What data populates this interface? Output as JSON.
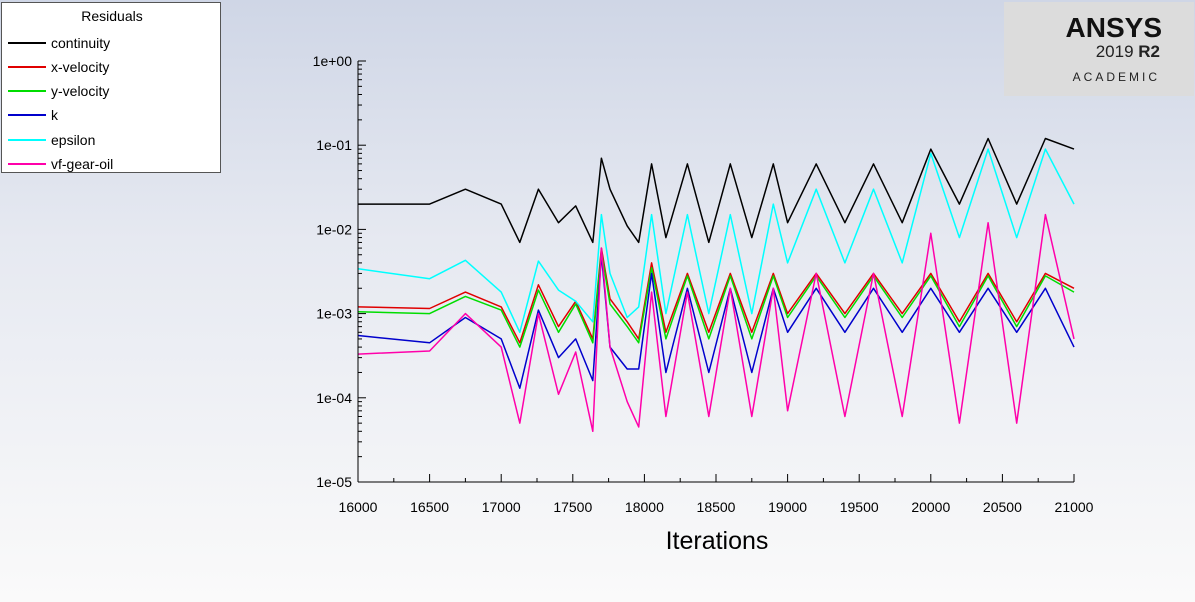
{
  "legend": {
    "title": "Residuals",
    "items": [
      {
        "label": "continuity",
        "color": "#000000",
        "icon": "line-swatch"
      },
      {
        "label": "x-velocity",
        "color": "#e00000",
        "icon": "line-swatch"
      },
      {
        "label": "y-velocity",
        "color": "#00dd00",
        "icon": "line-swatch"
      },
      {
        "label": "k",
        "color": "#0000cc",
        "icon": "line-swatch"
      },
      {
        "label": "epsilon",
        "color": "#00ffff",
        "icon": "line-swatch"
      },
      {
        "label": "vf-gear-oil",
        "color": "#ff00aa",
        "icon": "line-swatch"
      }
    ]
  },
  "logo": {
    "brand": "ANSYS",
    "version": "2019",
    "release": "R2",
    "edition": "ACADEMIC"
  },
  "chart_data": {
    "type": "line",
    "title": "Residuals",
    "xlabel": "Iterations",
    "ylabel": "",
    "xlim": [
      16000,
      21000
    ],
    "ylim": [
      1e-05,
      1
    ],
    "yscale": "log",
    "grid": false,
    "legend_position": "top-left",
    "x_ticks": [
      "16000",
      "16500",
      "17000",
      "17500",
      "18000",
      "18500",
      "19000",
      "19500",
      "20000",
      "20500",
      "21000"
    ],
    "y_ticks": [
      "1e+00",
      "1e-01",
      "1e-02",
      "1e-03",
      "1e-04",
      "1e-05"
    ],
    "x": [
      16000,
      16500,
      16750,
      17000,
      17130,
      17260,
      17400,
      17520,
      17640,
      17700,
      17760,
      17880,
      17960,
      18050,
      18150,
      18300,
      18450,
      18600,
      18750,
      18900,
      19000,
      19200,
      19400,
      19600,
      19800,
      20000,
      20200,
      20400,
      20600,
      20800,
      21000
    ],
    "series": [
      {
        "name": "continuity",
        "color": "#000000",
        "values": [
          0.02,
          0.02,
          0.03,
          0.02,
          0.007,
          0.03,
          0.012,
          0.019,
          0.007,
          0.07,
          0.03,
          0.011,
          0.007,
          0.06,
          0.008,
          0.06,
          0.007,
          0.06,
          0.008,
          0.06,
          0.012,
          0.06,
          0.012,
          0.06,
          0.012,
          0.09,
          0.02,
          0.12,
          0.02,
          0.12,
          0.09
        ]
      },
      {
        "name": "x-velocity",
        "color": "#e00000",
        "values": [
          0.0012,
          0.00115,
          0.0018,
          0.0012,
          0.00045,
          0.0022,
          0.0007,
          0.0014,
          0.0005,
          0.006,
          0.0015,
          0.0008,
          0.0005,
          0.004,
          0.0006,
          0.003,
          0.0006,
          0.003,
          0.0006,
          0.003,
          0.001,
          0.003,
          0.001,
          0.003,
          0.001,
          0.003,
          0.0008,
          0.003,
          0.0008,
          0.003,
          0.002
        ]
      },
      {
        "name": "y-velocity",
        "color": "#00dd00",
        "values": [
          0.00105,
          0.001,
          0.0016,
          0.0011,
          0.0004,
          0.0019,
          0.0006,
          0.0013,
          0.00045,
          0.0055,
          0.0013,
          0.0007,
          0.00045,
          0.0035,
          0.0005,
          0.0028,
          0.0005,
          0.0028,
          0.0005,
          0.0028,
          0.0009,
          0.0028,
          0.0009,
          0.0028,
          0.0009,
          0.0028,
          0.0007,
          0.0028,
          0.0007,
          0.0028,
          0.0018
        ]
      },
      {
        "name": "k",
        "color": "#0000cc",
        "values": [
          0.00055,
          0.00045,
          0.0009,
          0.0005,
          0.00013,
          0.0011,
          0.0003,
          0.0005,
          0.00016,
          0.005,
          0.0004,
          0.00022,
          0.00022,
          0.003,
          0.0002,
          0.002,
          0.0002,
          0.002,
          0.0002,
          0.002,
          0.0006,
          0.002,
          0.0006,
          0.002,
          0.0006,
          0.002,
          0.0006,
          0.002,
          0.0006,
          0.002,
          0.0004
        ]
      },
      {
        "name": "epsilon",
        "color": "#00ffff",
        "values": [
          0.0034,
          0.0026,
          0.0043,
          0.0018,
          0.0006,
          0.0042,
          0.0019,
          0.0014,
          0.0008,
          0.015,
          0.003,
          0.0009,
          0.0012,
          0.015,
          0.001,
          0.015,
          0.001,
          0.015,
          0.001,
          0.02,
          0.004,
          0.03,
          0.004,
          0.03,
          0.004,
          0.08,
          0.008,
          0.09,
          0.008,
          0.09,
          0.02
        ]
      },
      {
        "name": "vf-gear-oil",
        "color": "#ff00aa",
        "values": [
          0.00033,
          0.00036,
          0.001,
          0.0004,
          5e-05,
          0.001,
          0.00011,
          0.00035,
          4e-05,
          0.006,
          0.0004,
          9e-05,
          4.5e-05,
          0.0018,
          6e-05,
          0.0018,
          6e-05,
          0.002,
          6e-05,
          0.002,
          7e-05,
          0.003,
          6e-05,
          0.003,
          6e-05,
          0.009,
          5e-05,
          0.012,
          5e-05,
          0.015,
          0.0005
        ]
      }
    ]
  }
}
